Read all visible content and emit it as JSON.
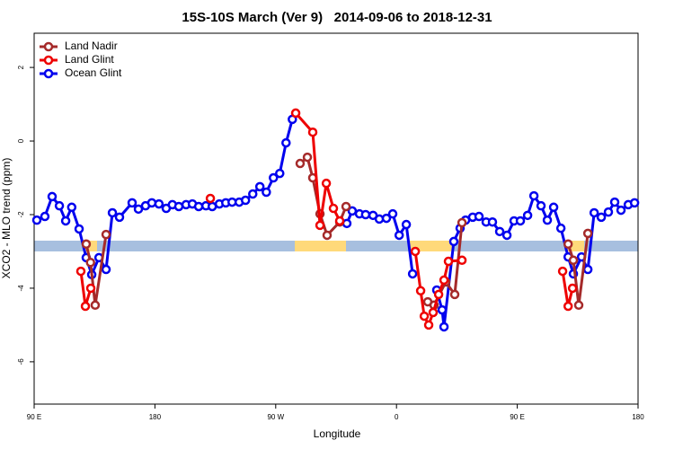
{
  "chart_data": {
    "type": "line",
    "title": "15S-10S March (Ver 9)   2014-09-06 to 2018-12-31",
    "x_label": "Longitude",
    "y_label": "XCO2 - MLO trend (ppm)",
    "xlim": [
      90,
      540
    ],
    "xticks": [
      {
        "value": 90,
        "label": "90 E"
      },
      {
        "value": 180,
        "label": "180"
      },
      {
        "value": 270,
        "label": "90 W"
      },
      {
        "value": 360,
        "label": "0"
      },
      {
        "value": 450,
        "label": "90 E"
      },
      {
        "value": 540,
        "label": "180"
      }
    ],
    "ylim": [
      -7.15,
      2.93
    ],
    "yticks": [
      -6,
      -4,
      -2,
      0,
      2
    ],
    "legend": "top-left",
    "series": [
      {
        "name": "Land Nadir",
        "color": "#a52a2a",
        "x": [
          128.8,
          132,
          135.5,
          143.6,
          null,
          288.2,
          293.6,
          297.6,
          303,
          308.3,
          317.7,
          322.4,
          null,
          383.3,
          388,
          396.7,
          403.4,
          408.8,
          null,
          487.9,
          491.8,
          495.8,
          502.6
        ],
        "values": [
          -2.8,
          -3.3,
          -4.46,
          -2.54,
          null,
          -0.61,
          -0.44,
          -1.0,
          -1.98,
          -2.56,
          -2.2,
          -1.78,
          null,
          -4.37,
          -4.46,
          -3.83,
          -4.17,
          -2.22,
          null,
          -2.8,
          -3.24,
          -4.46,
          -2.51
        ]
      },
      {
        "name": "Land Glint",
        "color": "#ee0000",
        "x": [
          124.8,
          128.2,
          132.2,
          null,
          221.3,
          null,
          284.9,
          297.6,
          303,
          307.7,
          313,
          317.7,
          null,
          374,
          378,
          380.7,
          384,
          387.3,
          391.4,
          395.4,
          398.7,
          408.8,
          null,
          483.8,
          487.9,
          491.2
        ],
        "values": [
          -3.54,
          -4.49,
          -4.0,
          null,
          -1.56,
          null,
          0.76,
          0.24,
          -2.29,
          -1.15,
          -1.83,
          -2.17,
          null,
          -3.0,
          -4.07,
          -4.76,
          -5.0,
          -4.66,
          -4.17,
          -3.78,
          -3.27,
          -3.24,
          null,
          -3.54,
          -4.49,
          -4.0
        ]
      },
      {
        "name": "Ocean Glint",
        "color": "#0000ee",
        "x": [
          92,
          98,
          103.4,
          108.8,
          113.5,
          118,
          123.5,
          128.8,
          132.9,
          138.3,
          143.6,
          148.3,
          153.6,
          163,
          167.7,
          173,
          177.7,
          183,
          188.4,
          193,
          197.8,
          203.2,
          207.9,
          212.6,
          218,
          222.7,
          228,
          232.8,
          237.5,
          242.8,
          247.5,
          252.9,
          258.2,
          263,
          268.3,
          273,
          277.7,
          282.4,
          null,
          323,
          327,
          332.4,
          337,
          342.5,
          347.2,
          352.5,
          357.2,
          362,
          367.3,
          372,
          null,
          390,
          394,
          395.4,
          402.7,
          407.4,
          411.5,
          416.8,
          421.5,
          426.8,
          431.5,
          436.9,
          442.3,
          447.6,
          452.3,
          457.7,
          462.4,
          467.7,
          472.4,
          477.1,
          482.5,
          487.9,
          491.8,
          497.9,
          502.6,
          507.3,
          512.6,
          517.9,
          522.6,
          527.3,
          532.7,
          537.4
        ],
        "values": [
          -2.15,
          -2.05,
          -1.51,
          -1.76,
          -2.17,
          -1.8,
          -2.39,
          -3.17,
          -3.63,
          -3.17,
          -3.49,
          -1.95,
          -2.07,
          -1.68,
          -1.85,
          -1.76,
          -1.68,
          -1.71,
          -1.83,
          -1.73,
          -1.78,
          -1.73,
          -1.71,
          -1.78,
          -1.76,
          -1.78,
          -1.71,
          -1.68,
          -1.66,
          -1.66,
          -1.61,
          -1.44,
          -1.24,
          -1.39,
          -1.0,
          -0.88,
          -0.05,
          0.59,
          null,
          -2.24,
          -1.9,
          -1.98,
          -2.0,
          -2.02,
          -2.12,
          -2.1,
          -1.98,
          -2.56,
          -2.27,
          -3.61,
          null,
          -4.05,
          -4.59,
          -5.05,
          -2.73,
          -2.37,
          -2.15,
          -2.07,
          -2.05,
          -2.2,
          -2.2,
          -2.46,
          -2.56,
          -2.17,
          -2.17,
          -2.02,
          -1.49,
          -1.76,
          -2.15,
          -1.8,
          -2.37,
          -3.15,
          -3.61,
          -3.15,
          -3.49,
          -1.95,
          -2.07,
          -1.93,
          -1.66,
          -1.88,
          -1.73,
          -1.68
        ]
      }
    ]
  }
}
